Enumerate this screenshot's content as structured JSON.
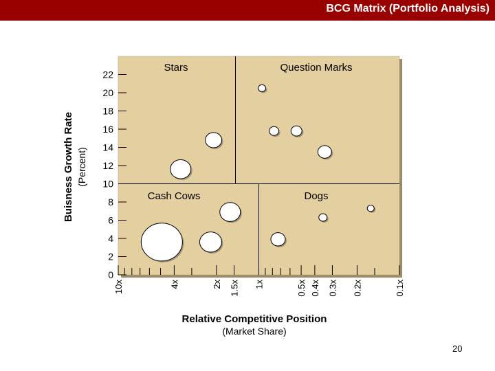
{
  "slide": {
    "title": "BCG Matrix (Portfolio Analysis)",
    "page_number": "20",
    "title_bar_color": "#990000"
  },
  "chart_data": {
    "type": "scatter",
    "title": "",
    "xlabel": "Relative Competitive Position",
    "xlabel_sub": "(Market Share)",
    "ylabel": "Buisness Growth Rate",
    "ylabel_sub": "(Percent)",
    "x_scale": "log",
    "x_ticks": [
      {
        "value": 10,
        "label": "10x"
      },
      {
        "value": 4,
        "label": "4x"
      },
      {
        "value": 2,
        "label": "2x"
      },
      {
        "value": 1.5,
        "label": "1.5x"
      },
      {
        "value": 1,
        "label": "1x"
      },
      {
        "value": 0.5,
        "label": "0.5x"
      },
      {
        "value": 0.4,
        "label": "0.4x"
      },
      {
        "value": 0.3,
        "label": "0.3x"
      },
      {
        "value": 0.2,
        "label": "0.2x"
      },
      {
        "value": 0.1,
        "label": "0.1x"
      }
    ],
    "xlim": [
      10,
      0.1
    ],
    "ylim": [
      0,
      23
    ],
    "y_ticks": [
      0,
      2,
      4,
      6,
      8,
      10,
      12,
      14,
      16,
      18,
      20,
      22
    ],
    "quadrants": [
      {
        "name": "Stars"
      },
      {
        "name": "Question Marks"
      },
      {
        "name": "Cash Cows"
      },
      {
        "name": "Dogs"
      }
    ],
    "points": [
      {
        "x": 3.6,
        "y": 11.6,
        "size": 1.5
      },
      {
        "x": 2.1,
        "y": 14.8,
        "size": 1.2
      },
      {
        "x": 0.95,
        "y": 20.5,
        "size": 0.55
      },
      {
        "x": 0.78,
        "y": 15.8,
        "size": 0.7
      },
      {
        "x": 0.54,
        "y": 15.8,
        "size": 0.8
      },
      {
        "x": 0.34,
        "y": 13.5,
        "size": 1.0
      },
      {
        "x": 1.6,
        "y": 6.9,
        "size": 1.5
      },
      {
        "x": 4.9,
        "y": 3.6,
        "size": 3.0
      },
      {
        "x": 2.2,
        "y": 3.6,
        "size": 1.6
      },
      {
        "x": 0.73,
        "y": 3.9,
        "size": 1.05
      },
      {
        "x": 0.35,
        "y": 6.3,
        "size": 0.6
      },
      {
        "x": 0.16,
        "y": 7.3,
        "size": 0.5
      }
    ],
    "colors": {
      "panel": "#e3cf9f",
      "bubble_fill": "#ffffff",
      "line": "#000000"
    }
  }
}
